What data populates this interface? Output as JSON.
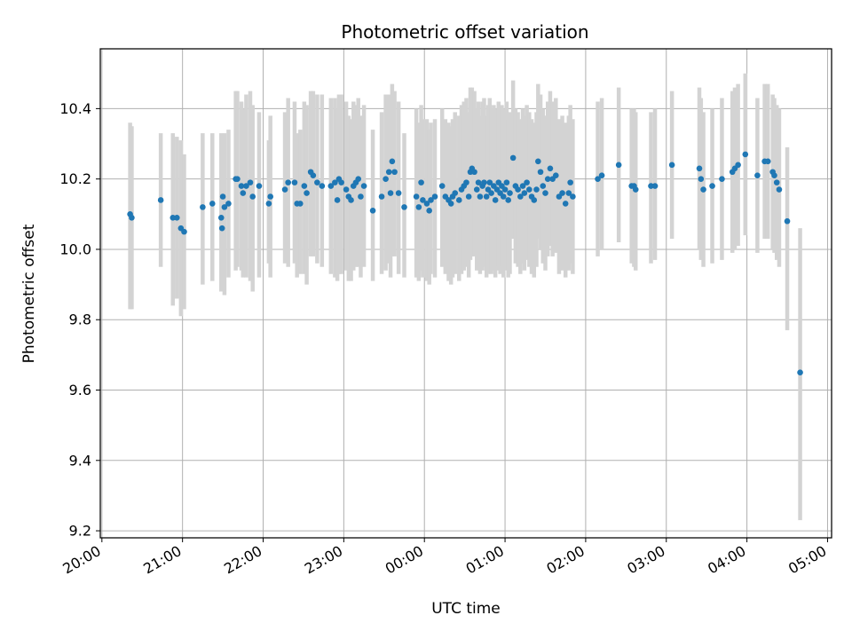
{
  "chart_data": {
    "type": "scatter",
    "title": "Photometric offset variation",
    "xlabel": "UTC time",
    "ylabel": "Photometric offset",
    "x_unit": "hours since 20:00 UTC (date axis)",
    "xlim": [
      -0.02,
      9.05
    ],
    "ylim": [
      9.18,
      10.57
    ],
    "x_ticks": [
      {
        "value": 0,
        "label": "20:00"
      },
      {
        "value": 1,
        "label": "21:00"
      },
      {
        "value": 2,
        "label": "22:00"
      },
      {
        "value": 3,
        "label": "23:00"
      },
      {
        "value": 4,
        "label": "00:00"
      },
      {
        "value": 5,
        "label": "01:00"
      },
      {
        "value": 6,
        "label": "02:00"
      },
      {
        "value": 7,
        "label": "03:00"
      },
      {
        "value": 8,
        "label": "04:00"
      },
      {
        "value": 9,
        "label": "05:00"
      }
    ],
    "y_ticks": [
      {
        "value": 9.2,
        "label": "9.2"
      },
      {
        "value": 9.4,
        "label": "9.4"
      },
      {
        "value": 9.6,
        "label": "9.6"
      },
      {
        "value": 9.8,
        "label": "9.8"
      },
      {
        "value": 10.0,
        "label": "10.0"
      },
      {
        "value": 10.2,
        "label": "10.2"
      },
      {
        "value": 10.4,
        "label": "10.4"
      }
    ],
    "grid": true,
    "marker_color": "#1f77b4",
    "errorbar_color": "#d3d3d3",
    "series": [
      {
        "points": [
          [
            0.35,
            10.1,
            9.83,
            10.36
          ],
          [
            0.37,
            10.09,
            9.83,
            10.35
          ],
          [
            0.73,
            10.14,
            9.95,
            10.33
          ],
          [
            0.88,
            10.09,
            9.84,
            10.33
          ],
          [
            0.93,
            10.09,
            9.86,
            10.32
          ],
          [
            0.98,
            10.06,
            9.81,
            10.31
          ],
          [
            1.02,
            10.05,
            9.83,
            10.27
          ],
          [
            1.25,
            10.12,
            9.9,
            10.33
          ],
          [
            1.37,
            10.13,
            9.91,
            10.33
          ],
          [
            1.48,
            10.09,
            9.88,
            10.33
          ],
          [
            1.49,
            10.06,
            9.89,
            10.24
          ],
          [
            1.5,
            10.15,
            9.88,
            10.32
          ],
          [
            1.52,
            10.12,
            9.87,
            10.33
          ],
          [
            1.57,
            10.13,
            9.92,
            10.34
          ],
          [
            1.66,
            10.2,
            9.94,
            10.45
          ],
          [
            1.68,
            10.2,
            9.95,
            10.45
          ],
          [
            1.73,
            10.18,
            9.94,
            10.42
          ],
          [
            1.75,
            10.16,
            9.92,
            10.4
          ],
          [
            1.79,
            10.18,
            9.92,
            10.44
          ],
          [
            1.84,
            10.19,
            9.91,
            10.45
          ],
          [
            1.87,
            10.15,
            9.88,
            10.41
          ],
          [
            1.95,
            10.18,
            9.92,
            10.39
          ],
          [
            2.07,
            10.13,
            9.96,
            10.31
          ],
          [
            2.09,
            10.15,
            9.92,
            10.38
          ],
          [
            2.27,
            10.17,
            9.96,
            10.39
          ],
          [
            2.31,
            10.19,
            9.95,
            10.43
          ],
          [
            2.39,
            10.19,
            9.96,
            10.42
          ],
          [
            2.42,
            10.13,
            9.92,
            10.33
          ],
          [
            2.46,
            10.13,
            9.93,
            10.34
          ],
          [
            2.51,
            10.18,
            9.93,
            10.42
          ],
          [
            2.54,
            10.16,
            9.9,
            10.41
          ],
          [
            2.59,
            10.22,
            9.98,
            10.45
          ],
          [
            2.62,
            10.21,
            9.98,
            10.45
          ],
          [
            2.67,
            10.19,
            9.96,
            10.44
          ],
          [
            2.73,
            10.18,
            9.95,
            10.44
          ],
          [
            2.84,
            10.18,
            9.93,
            10.43
          ],
          [
            2.89,
            10.19,
            9.92,
            10.43
          ],
          [
            2.92,
            10.14,
            9.91,
            10.4
          ],
          [
            2.94,
            10.2,
            9.93,
            10.44
          ],
          [
            2.97,
            10.19,
            9.93,
            10.44
          ],
          [
            3.03,
            10.17,
            9.94,
            10.42
          ],
          [
            3.06,
            10.15,
            9.91,
            10.38
          ],
          [
            3.09,
            10.14,
            9.91,
            10.37
          ],
          [
            3.12,
            10.18,
            9.94,
            10.42
          ],
          [
            3.15,
            10.19,
            9.95,
            10.41
          ],
          [
            3.18,
            10.2,
            9.95,
            10.43
          ],
          [
            3.21,
            10.15,
            9.92,
            10.38
          ],
          [
            3.25,
            10.18,
            9.95,
            10.41
          ],
          [
            3.36,
            10.11,
            9.91,
            10.34
          ],
          [
            3.47,
            10.15,
            9.93,
            10.39
          ],
          [
            3.52,
            10.2,
            9.94,
            10.44
          ],
          [
            3.56,
            10.22,
            9.96,
            10.44
          ],
          [
            3.58,
            10.16,
            9.92,
            10.39
          ],
          [
            3.6,
            10.25,
            9.98,
            10.47
          ],
          [
            3.63,
            10.22,
            9.98,
            10.45
          ],
          [
            3.68,
            10.16,
            9.93,
            10.42
          ],
          [
            3.75,
            10.12,
            9.92,
            10.33
          ],
          [
            3.9,
            10.15,
            9.92,
            10.4
          ],
          [
            3.93,
            10.12,
            9.91,
            10.36
          ],
          [
            3.96,
            10.19,
            9.94,
            10.41
          ],
          [
            3.98,
            10.14,
            9.92,
            10.37
          ],
          [
            4.03,
            10.13,
            9.91,
            10.37
          ],
          [
            4.06,
            10.11,
            9.9,
            10.34
          ],
          [
            4.08,
            10.14,
            9.93,
            10.36
          ],
          [
            4.13,
            10.15,
            9.92,
            10.37
          ],
          [
            4.22,
            10.18,
            9.95,
            10.4
          ],
          [
            4.26,
            10.15,
            9.93,
            10.37
          ],
          [
            4.3,
            10.14,
            9.91,
            10.36
          ],
          [
            4.33,
            10.13,
            9.9,
            10.35
          ],
          [
            4.35,
            10.15,
            9.92,
            10.37
          ],
          [
            4.38,
            10.16,
            9.93,
            10.39
          ],
          [
            4.43,
            10.14,
            9.91,
            10.38
          ],
          [
            4.46,
            10.17,
            9.93,
            10.41
          ],
          [
            4.49,
            10.18,
            9.94,
            10.42
          ],
          [
            4.52,
            10.19,
            9.95,
            10.43
          ],
          [
            4.55,
            10.15,
            9.92,
            10.39
          ],
          [
            4.57,
            10.22,
            9.97,
            10.46
          ],
          [
            4.59,
            10.23,
            9.98,
            10.46
          ],
          [
            4.62,
            10.22,
            9.98,
            10.45
          ],
          [
            4.65,
            10.17,
            9.94,
            10.4
          ],
          [
            4.67,
            10.19,
            9.95,
            10.42
          ],
          [
            4.69,
            10.15,
            9.93,
            10.38
          ],
          [
            4.72,
            10.18,
            9.94,
            10.42
          ],
          [
            4.74,
            10.19,
            9.95,
            10.43
          ],
          [
            4.77,
            10.15,
            9.92,
            10.38
          ],
          [
            4.79,
            10.17,
            9.93,
            10.41
          ],
          [
            4.81,
            10.19,
            9.95,
            10.43
          ],
          [
            4.83,
            10.16,
            9.93,
            10.4
          ],
          [
            4.86,
            10.18,
            9.94,
            10.41
          ],
          [
            4.88,
            10.14,
            9.92,
            10.37
          ],
          [
            4.9,
            10.17,
            9.94,
            10.4
          ],
          [
            4.92,
            10.19,
            9.95,
            10.42
          ],
          [
            4.94,
            10.16,
            9.93,
            10.39
          ],
          [
            4.96,
            10.18,
            9.95,
            10.41
          ],
          [
            4.98,
            10.15,
            9.92,
            10.38
          ],
          [
            5.0,
            10.17,
            9.94,
            10.4
          ],
          [
            5.02,
            10.19,
            9.96,
            10.42
          ],
          [
            5.04,
            10.14,
            9.92,
            10.37
          ],
          [
            5.06,
            10.16,
            9.93,
            10.39
          ],
          [
            5.1,
            10.26,
            10.03,
            10.48
          ],
          [
            5.13,
            10.18,
            9.96,
            10.4
          ],
          [
            5.16,
            10.17,
            9.95,
            10.39
          ],
          [
            5.19,
            10.15,
            9.93,
            10.37
          ],
          [
            5.22,
            10.18,
            9.96,
            10.4
          ],
          [
            5.24,
            10.16,
            9.94,
            10.38
          ],
          [
            5.27,
            10.19,
            9.97,
            10.41
          ],
          [
            5.3,
            10.17,
            9.95,
            10.39
          ],
          [
            5.33,
            10.15,
            9.93,
            10.37
          ],
          [
            5.36,
            10.14,
            9.92,
            10.36
          ],
          [
            5.39,
            10.17,
            9.95,
            10.39
          ],
          [
            5.41,
            10.25,
            10.03,
            10.47
          ],
          [
            5.44,
            10.22,
            10.0,
            10.44
          ],
          [
            5.47,
            10.18,
            9.96,
            10.4
          ],
          [
            5.5,
            10.16,
            9.94,
            10.38
          ],
          [
            5.53,
            10.2,
            9.98,
            10.42
          ],
          [
            5.56,
            10.23,
            10.01,
            10.45
          ],
          [
            5.59,
            10.2,
            9.98,
            10.42
          ],
          [
            5.63,
            10.21,
            9.99,
            10.43
          ],
          [
            5.67,
            10.15,
            9.93,
            10.37
          ],
          [
            5.71,
            10.16,
            9.94,
            10.38
          ],
          [
            5.75,
            10.13,
            9.92,
            10.36
          ],
          [
            5.79,
            10.16,
            9.94,
            10.38
          ],
          [
            5.81,
            10.19,
            9.96,
            10.41
          ],
          [
            5.84,
            10.15,
            9.93,
            10.37
          ],
          [
            6.15,
            10.2,
            9.98,
            10.42
          ],
          [
            6.2,
            10.21,
            10.0,
            10.43
          ],
          [
            6.41,
            10.24,
            10.02,
            10.46
          ],
          [
            6.57,
            10.18,
            9.96,
            10.4
          ],
          [
            6.6,
            10.18,
            9.95,
            10.4
          ],
          [
            6.62,
            10.17,
            9.94,
            10.39
          ],
          [
            6.81,
            10.18,
            9.96,
            10.39
          ],
          [
            6.86,
            10.18,
            9.97,
            10.4
          ],
          [
            7.07,
            10.24,
            10.03,
            10.45
          ],
          [
            7.41,
            10.23,
            10.0,
            10.46
          ],
          [
            7.43,
            10.2,
            9.97,
            10.43
          ],
          [
            7.46,
            10.17,
            9.95,
            10.39
          ],
          [
            7.57,
            10.18,
            9.96,
            10.4
          ],
          [
            7.69,
            10.2,
            9.97,
            10.43
          ],
          [
            7.82,
            10.22,
            9.99,
            10.45
          ],
          [
            7.85,
            10.23,
            10.0,
            10.46
          ],
          [
            7.89,
            10.24,
            10.01,
            10.47
          ],
          [
            7.98,
            10.27,
            10.04,
            10.5
          ],
          [
            8.13,
            10.21,
            9.99,
            10.43
          ],
          [
            8.22,
            10.25,
            10.03,
            10.47
          ],
          [
            8.26,
            10.25,
            10.03,
            10.47
          ],
          [
            8.32,
            10.22,
            10.0,
            10.44
          ],
          [
            8.34,
            10.21,
            9.99,
            10.43
          ],
          [
            8.37,
            10.19,
            9.97,
            10.41
          ],
          [
            8.4,
            10.17,
            9.95,
            10.4
          ],
          [
            8.5,
            10.08,
            9.77,
            10.29
          ],
          [
            8.66,
            9.65,
            9.23,
            10.06
          ]
        ]
      }
    ]
  }
}
